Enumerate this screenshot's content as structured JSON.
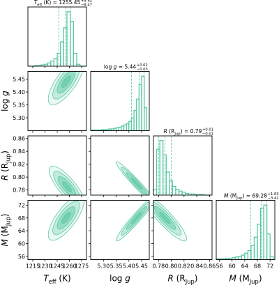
{
  "chart_data": {
    "type": "corner",
    "color": "#5bc8a5",
    "contour_sigmas": [
      0.5,
      1,
      1.5,
      2
    ],
    "parameters": [
      {
        "label": [
          {
            "text": "T",
            "italic": true
          },
          {
            "text": "eff",
            "sub": true
          },
          {
            "text": " (K)"
          }
        ],
        "title_value": " = 1255.45",
        "title_upper": "+5.92",
        "title_lower": "−8.47",
        "range": [
          1209,
          1281
        ],
        "ticks": [
          1215,
          1230,
          1245,
          1260,
          1275
        ],
        "bins": [
          1209,
          1213,
          1217,
          1221,
          1225,
          1229,
          1233,
          1237,
          1241,
          1245,
          1249,
          1253,
          1257,
          1261,
          1265,
          1269,
          1273,
          1277,
          1281
        ],
        "counts": [
          0,
          0,
          1,
          1,
          2,
          3,
          5,
          8,
          12,
          20,
          38,
          60,
          85,
          70,
          20,
          3,
          0,
          0
        ],
        "quantiles": [
          1246.98,
          1255.45,
          1261.37
        ]
      },
      {
        "label": [
          {
            "text": "log "
          },
          {
            "text": "g",
            "italic": true
          }
        ],
        "title_value": " = 5.44",
        "title_upper": "+0.02",
        "title_lower": "−0.03",
        "range": [
          5.25,
          5.48
        ],
        "ticks": [
          {
            "value": 5.3,
            "label": "5.30"
          },
          5.35,
          {
            "value": 5.4,
            "label": "5.40"
          },
          5.45
        ],
        "bins": [
          5.25,
          5.26,
          5.27,
          5.28,
          5.29,
          5.3,
          5.31,
          5.32,
          5.33,
          5.34,
          5.35,
          5.36,
          5.37,
          5.38,
          5.39,
          5.4,
          5.41,
          5.42,
          5.43,
          5.44,
          5.45,
          5.46,
          5.47,
          5.48
        ],
        "counts": [
          1,
          1,
          1,
          1,
          2,
          2,
          2,
          3,
          3,
          4,
          5,
          6,
          8,
          10,
          12,
          16,
          22,
          35,
          55,
          80,
          95,
          40,
          0
        ],
        "quantiles": [
          5.41,
          5.44,
          5.46
        ]
      },
      {
        "label": [
          {
            "text": "R",
            "italic": true
          },
          {
            "text": " (R"
          },
          {
            "text": "Jup",
            "sub": true
          },
          {
            "text": ")"
          }
        ],
        "title_value": " = 0.79",
        "title_upper": "+0.01",
        "title_lower": "−0.01",
        "range": [
          0.772,
          0.864
        ],
        "ticks": [
          0.78,
          {
            "value": 0.8,
            "label": "0.80"
          },
          0.82,
          0.84,
          0.86
        ],
        "bins": [
          0.772,
          0.777,
          0.782,
          0.787,
          0.792,
          0.797,
          0.802,
          0.807,
          0.812,
          0.817,
          0.822,
          0.827,
          0.832,
          0.837,
          0.842,
          0.847,
          0.852,
          0.857,
          0.862
        ],
        "counts": [
          10,
          80,
          95,
          70,
          40,
          25,
          15,
          10,
          7,
          5,
          3,
          2,
          2,
          1,
          1,
          1,
          0,
          0
        ],
        "quantiles": [
          0.78,
          0.79,
          0.8
        ]
      },
      {
        "label": [
          {
            "text": "M",
            "italic": true
          },
          {
            "text": " (M"
          },
          {
            "text": "Jup",
            "sub": true
          },
          {
            "text": ")"
          }
        ],
        "title_value": " = 69.28",
        "title_upper": "+1.63",
        "title_lower": "−3.41",
        "range": [
          55,
          73.5
        ],
        "ticks": [
          56,
          60,
          64,
          68,
          72
        ],
        "bins": [
          55,
          56,
          57,
          58,
          59,
          60,
          61,
          62,
          63,
          64,
          65,
          66,
          67,
          68,
          69,
          70,
          71,
          72,
          73
        ],
        "counts": [
          1,
          1,
          1,
          2,
          2,
          3,
          4,
          5,
          7,
          10,
          14,
          22,
          35,
          55,
          80,
          85,
          40,
          5
        ],
        "quantiles": [
          65.87,
          69.28,
          70.91
        ]
      }
    ],
    "density_2d": [
      {
        "center": [
          1256,
          5.44
        ],
        "sd": [
          11,
          0.045
        ],
        "rho": 0.75
      },
      {
        "center": [
          1257,
          0.785
        ],
        "sd": [
          11,
          0.016
        ],
        "rho": -0.8
      },
      {
        "center": [
          5.43,
          0.79
        ],
        "sd": [
          0.04,
          0.017
        ],
        "rho": -0.97
      },
      {
        "center": [
          1256,
          68
        ],
        "sd": [
          11,
          3.5
        ],
        "rho": 0.75
      },
      {
        "center": [
          5.43,
          68
        ],
        "sd": [
          0.04,
          3.6
        ],
        "rho": 0.96
      },
      {
        "center": [
          0.79,
          68
        ],
        "sd": [
          0.017,
          3.6
        ],
        "rho": -0.9
      }
    ]
  }
}
